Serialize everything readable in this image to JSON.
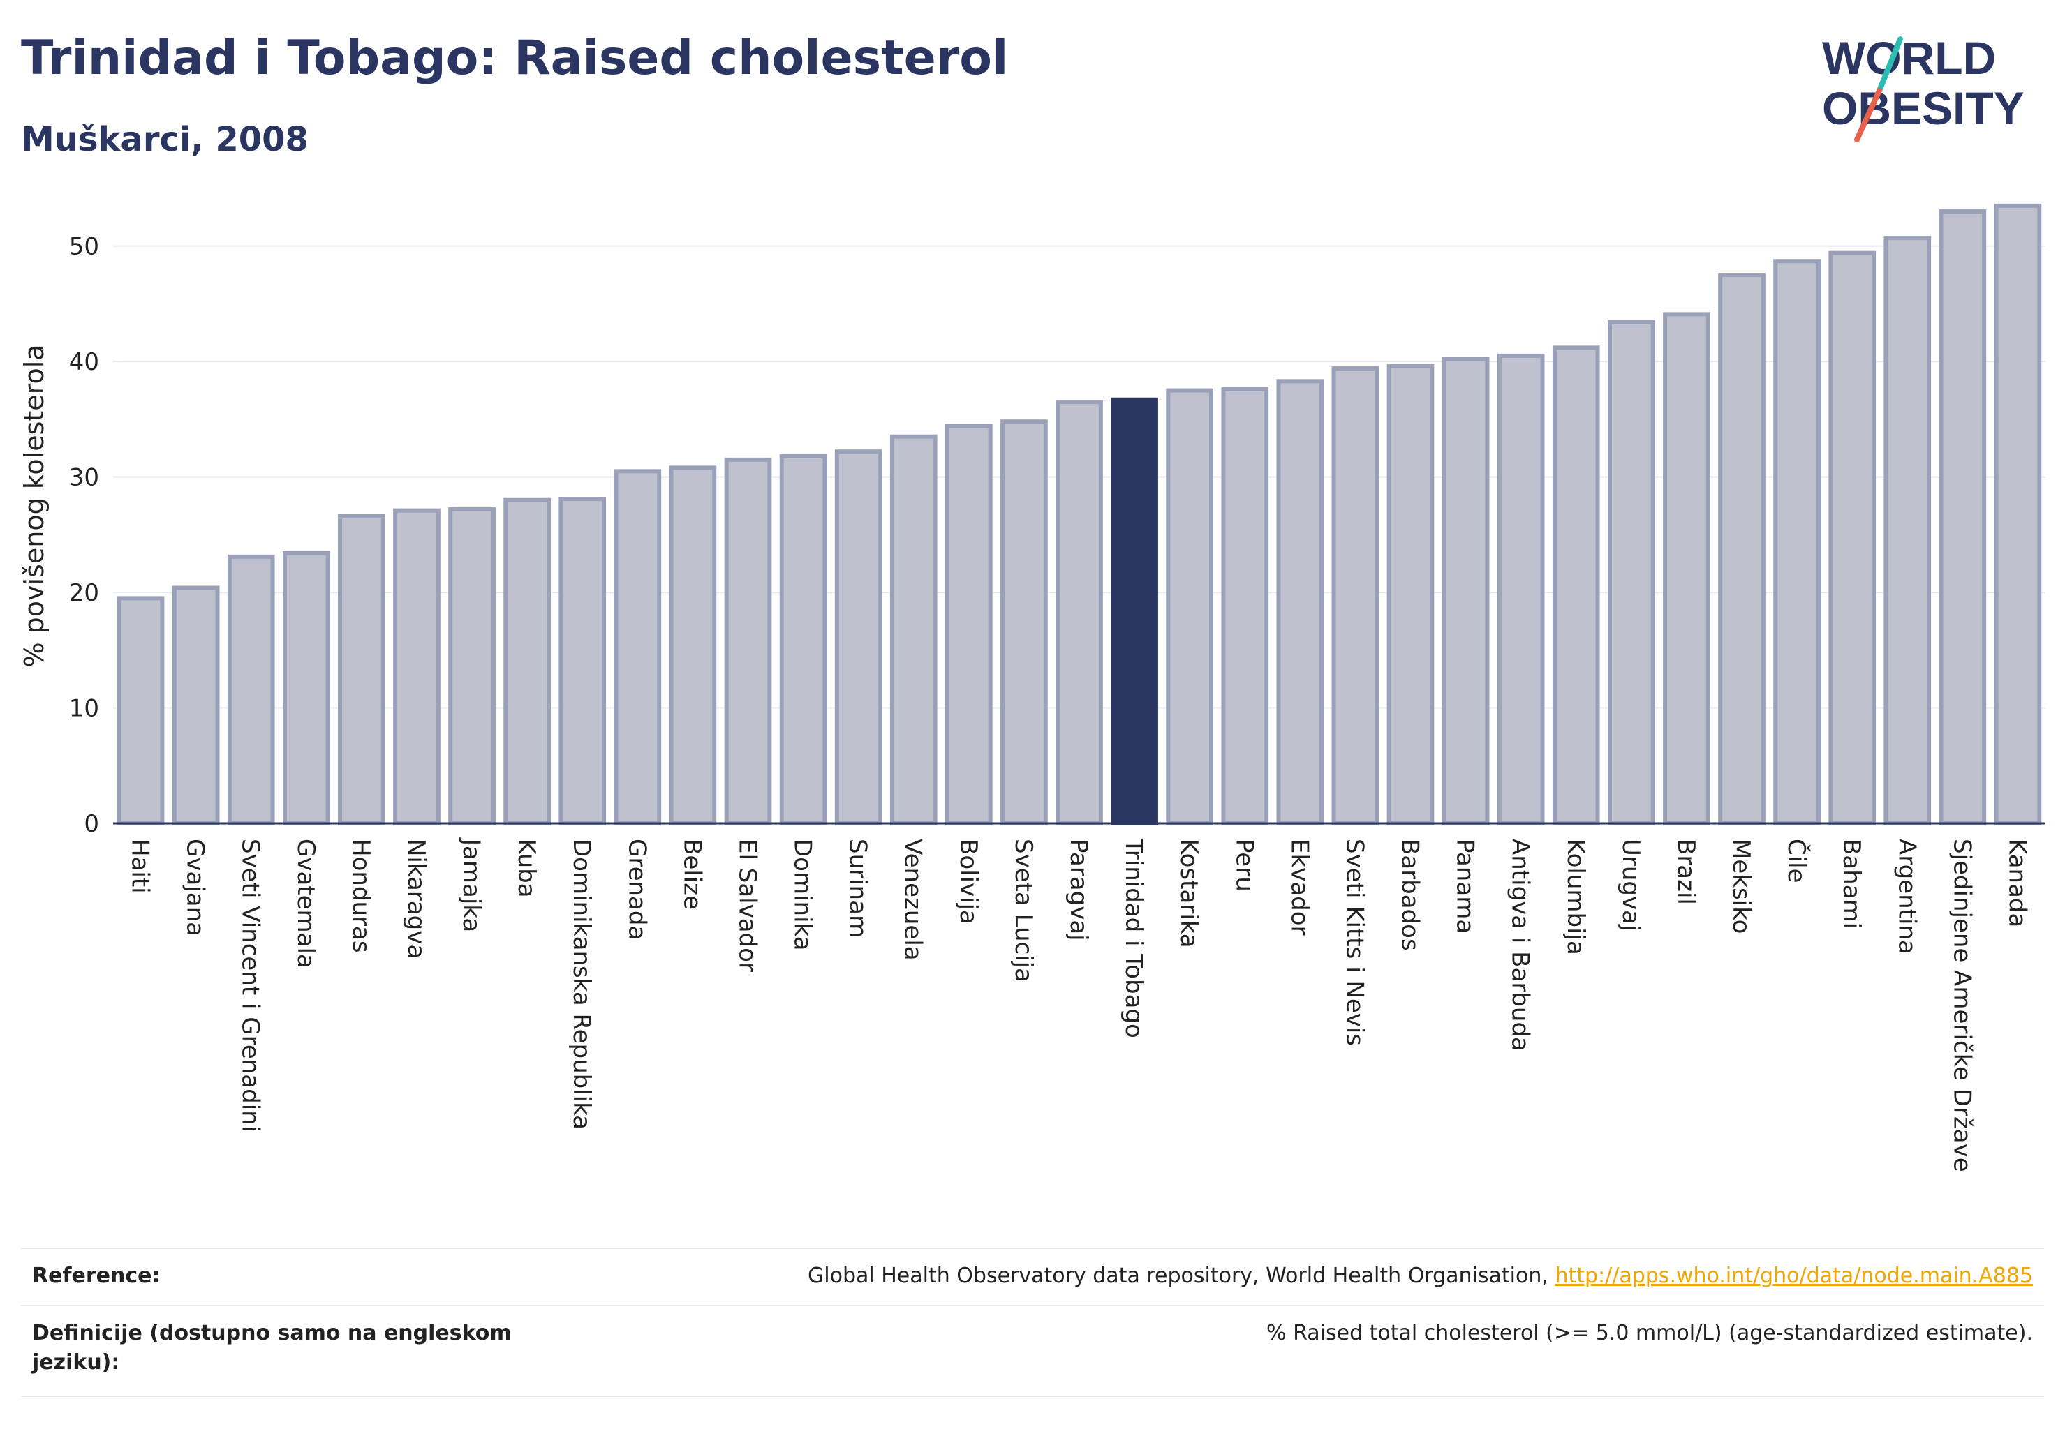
{
  "title": "Trinidad i Tobago: Raised cholesterol",
  "subtitle": "Muškarci, 2008",
  "logo": {
    "line1": "WORLD",
    "line2": "OBESITY"
  },
  "colors": {
    "bar": "#bfc2ce",
    "bar_stroke": "#9aa0b8",
    "highlight": "#2a3561",
    "accent_teal": "#2bbcb3",
    "accent_red": "#e8604c",
    "link": "#f0a500"
  },
  "chart_data": {
    "type": "bar",
    "ylabel": "% povišenog kolesterola",
    "ylim": [
      0,
      55
    ],
    "yticks": [
      0,
      10,
      20,
      30,
      40,
      50
    ],
    "grid": true,
    "highlight": "Trinidad i Tobago",
    "categories": [
      "Haiti",
      "Gvajana",
      "Sveti Vincent i Grenadini",
      "Gvatemala",
      "Honduras",
      "Nikaragva",
      "Jamajka",
      "Kuba",
      "Dominikanska Republika",
      "Grenada",
      "Belize",
      "El Salvador",
      "Dominika",
      "Surinam",
      "Venezuela",
      "Bolivija",
      "Sveta Lucija",
      "Paragvaj",
      "Trinidad i Tobago",
      "Kostarika",
      "Peru",
      "Ekvador",
      "Sveti Kitts i Nevis",
      "Barbados",
      "Panama",
      "Antigva i Barbuda",
      "Kolumbija",
      "Urugvaj",
      "Brazil",
      "Meksiko",
      "Čile",
      "Bahami",
      "Argentina",
      "Sjedinjene Američke Države",
      "Kanada"
    ],
    "values": [
      19.5,
      20.4,
      23.1,
      23.4,
      26.6,
      27.1,
      27.2,
      28.0,
      28.1,
      30.5,
      30.8,
      31.5,
      31.8,
      32.2,
      33.5,
      34.4,
      34.8,
      36.5,
      36.7,
      37.5,
      37.6,
      38.3,
      39.4,
      39.6,
      40.2,
      40.5,
      41.2,
      43.4,
      44.1,
      47.5,
      48.7,
      49.4,
      50.7,
      53.0,
      53.5
    ]
  },
  "footer": {
    "reference_label": "Reference:",
    "reference_text": "Global Health Observatory data repository, World Health Organisation, ",
    "reference_link": "http://apps.who.int/gho/data/node.main.A885",
    "definition_label": "Definicije (dostupno samo na engleskom jeziku):",
    "definition_text": "% Raised total cholesterol (>= 5.0 mmol/L) (age-standardized estimate)."
  }
}
